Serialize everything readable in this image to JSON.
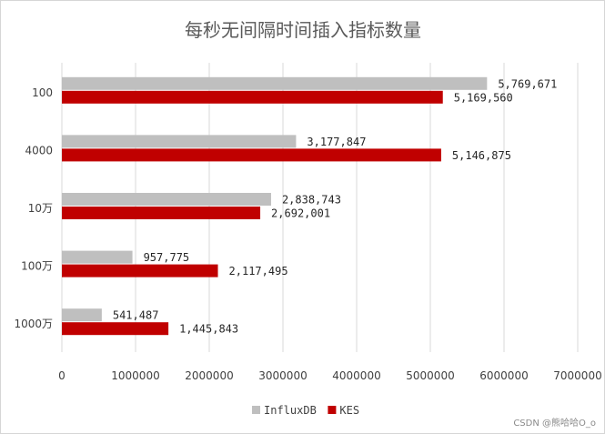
{
  "chart_data": {
    "type": "bar",
    "orientation": "horizontal",
    "title": "每秒无间隔时间插入指标数量",
    "categories": [
      "100",
      "4000",
      "10万",
      "100万",
      "1000万"
    ],
    "series": [
      {
        "name": "InfluxDB",
        "color": "#bfbfbf",
        "values": [
          5769671,
          3177847,
          2838743,
          957775,
          541487
        ],
        "labels": [
          "5,769,671",
          "3,177,847",
          "2,838,743",
          "957,775",
          "541,487"
        ]
      },
      {
        "name": "KES",
        "color": "#c00000",
        "values": [
          5169560,
          5146875,
          2692001,
          2117495,
          1445843
        ],
        "labels": [
          "5,169,560",
          "5,146,875",
          "2,692,001",
          "2,117,495",
          "1,445,843"
        ]
      }
    ],
    "xlim": [
      0,
      7000000
    ],
    "ticks": [
      "0",
      "1000000",
      "2000000",
      "3000000",
      "4000000",
      "5000000",
      "6000000",
      "7000000"
    ],
    "grid": true,
    "legend_position": "bottom"
  },
  "watermark": "CSDN @熊哈哈O_o"
}
